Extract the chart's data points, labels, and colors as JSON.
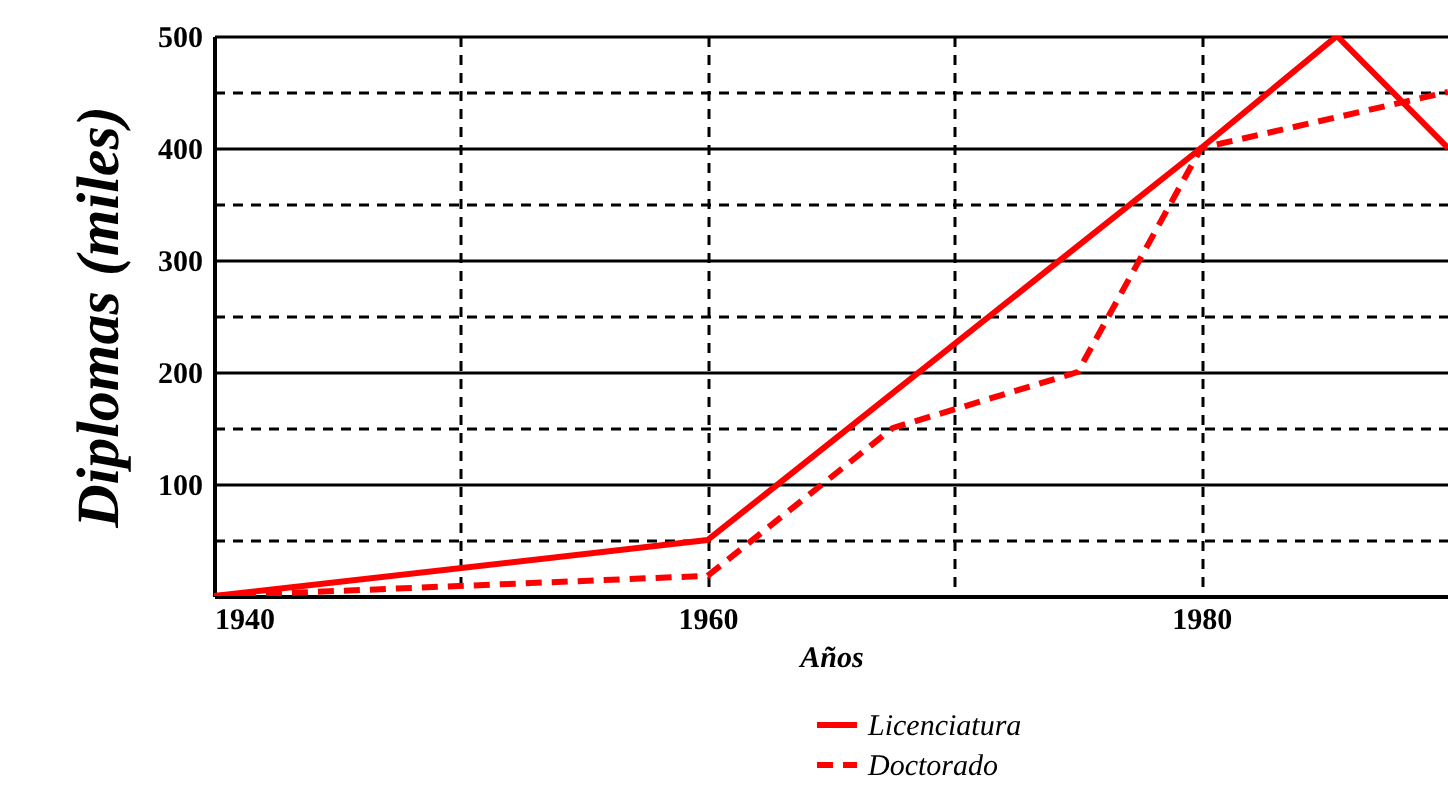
{
  "chart_data": {
    "type": "line",
    "xlabel": "Años",
    "ylabel": "Diplomas (miles)",
    "xlim": [
      1940,
      1990
    ],
    "xticks": [
      1940,
      {
        "value": 1950,
        "label": null
      },
      1960,
      {
        "value": 1970,
        "label": null
      },
      1980
    ],
    "ylim": [
      0,
      500
    ],
    "yticks": [
      {
        "value": 50,
        "label": null
      },
      100,
      {
        "value": 150,
        "label": null
      },
      200,
      {
        "value": 250,
        "label": null
      },
      300,
      {
        "value": 350,
        "label": null
      },
      400,
      {
        "value": 450,
        "label": null
      },
      500
    ],
    "grid": true,
    "legend": "bottom right",
    "series": [
      {
        "name": "Licenciatura",
        "color": "#ff0000",
        "line_style": "solid",
        "x": [
          1940,
          1960,
          1980,
          1985.5,
          1990
        ],
        "values": [
          0,
          50,
          400,
          500,
          400
        ]
      },
      {
        "name": "Doctorado",
        "color": "#ff0000",
        "line_style": "dashed",
        "x": [
          1940,
          1960,
          1967.5,
          1975,
          1980,
          1990
        ],
        "values": [
          0,
          18,
          150,
          200,
          400,
          450
        ]
      }
    ]
  }
}
